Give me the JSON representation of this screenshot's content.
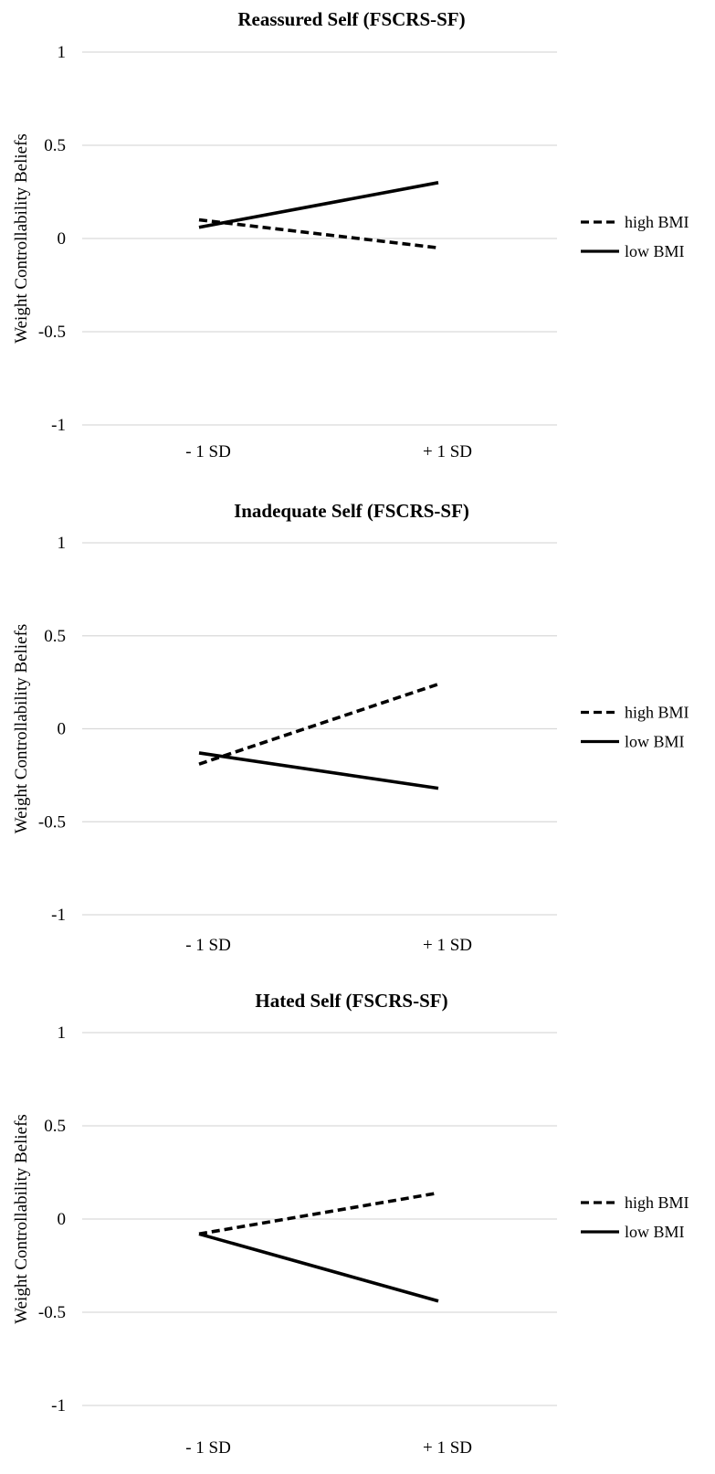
{
  "chart_data": [
    {
      "type": "line",
      "title": "Reassured Self (FSCRS-SF)",
      "ylabel": "Weight Controllability Beliefs",
      "xlabel": "",
      "categories": [
        "- 1 SD",
        "+ 1 SD"
      ],
      "yticks": [
        "1",
        "0.5",
        "0",
        "-0.5",
        "-1"
      ],
      "ylim": [
        -1,
        1
      ],
      "grid": true,
      "legend_position": "right",
      "series": [
        {
          "name": "high BMI",
          "style": "dashed",
          "values": [
            0.1,
            -0.05
          ]
        },
        {
          "name": "low BMI",
          "style": "solid",
          "values": [
            0.06,
            0.3
          ]
        }
      ]
    },
    {
      "type": "line",
      "title": "Inadequate Self (FSCRS-SF)",
      "ylabel": "Weight Controllability Beliefs",
      "xlabel": "",
      "categories": [
        "- 1 SD",
        "+ 1 SD"
      ],
      "yticks": [
        "1",
        "0.5",
        "0",
        "-0.5",
        "-1"
      ],
      "ylim": [
        -1,
        1
      ],
      "grid": true,
      "legend_position": "right",
      "series": [
        {
          "name": "high BMI",
          "style": "dashed",
          "values": [
            -0.19,
            0.24
          ]
        },
        {
          "name": "low BMI",
          "style": "solid",
          "values": [
            -0.13,
            -0.32
          ]
        }
      ]
    },
    {
      "type": "line",
      "title": "Hated Self (FSCRS-SF)",
      "ylabel": "Weight Controllability Beliefs",
      "xlabel": "",
      "categories": [
        "- 1 SD",
        "+ 1 SD"
      ],
      "yticks": [
        "1",
        "0.5",
        "0",
        "-0.5",
        "-1"
      ],
      "ylim": [
        -1,
        1
      ],
      "grid": true,
      "legend_position": "right",
      "series": [
        {
          "name": "high BMI",
          "style": "dashed",
          "values": [
            -0.08,
            0.14
          ]
        },
        {
          "name": "low BMI",
          "style": "solid",
          "values": [
            -0.08,
            -0.44
          ]
        }
      ]
    }
  ],
  "colors": {
    "line": "#000000",
    "grid": "#d9d9d9",
    "background": "#ffffff"
  }
}
